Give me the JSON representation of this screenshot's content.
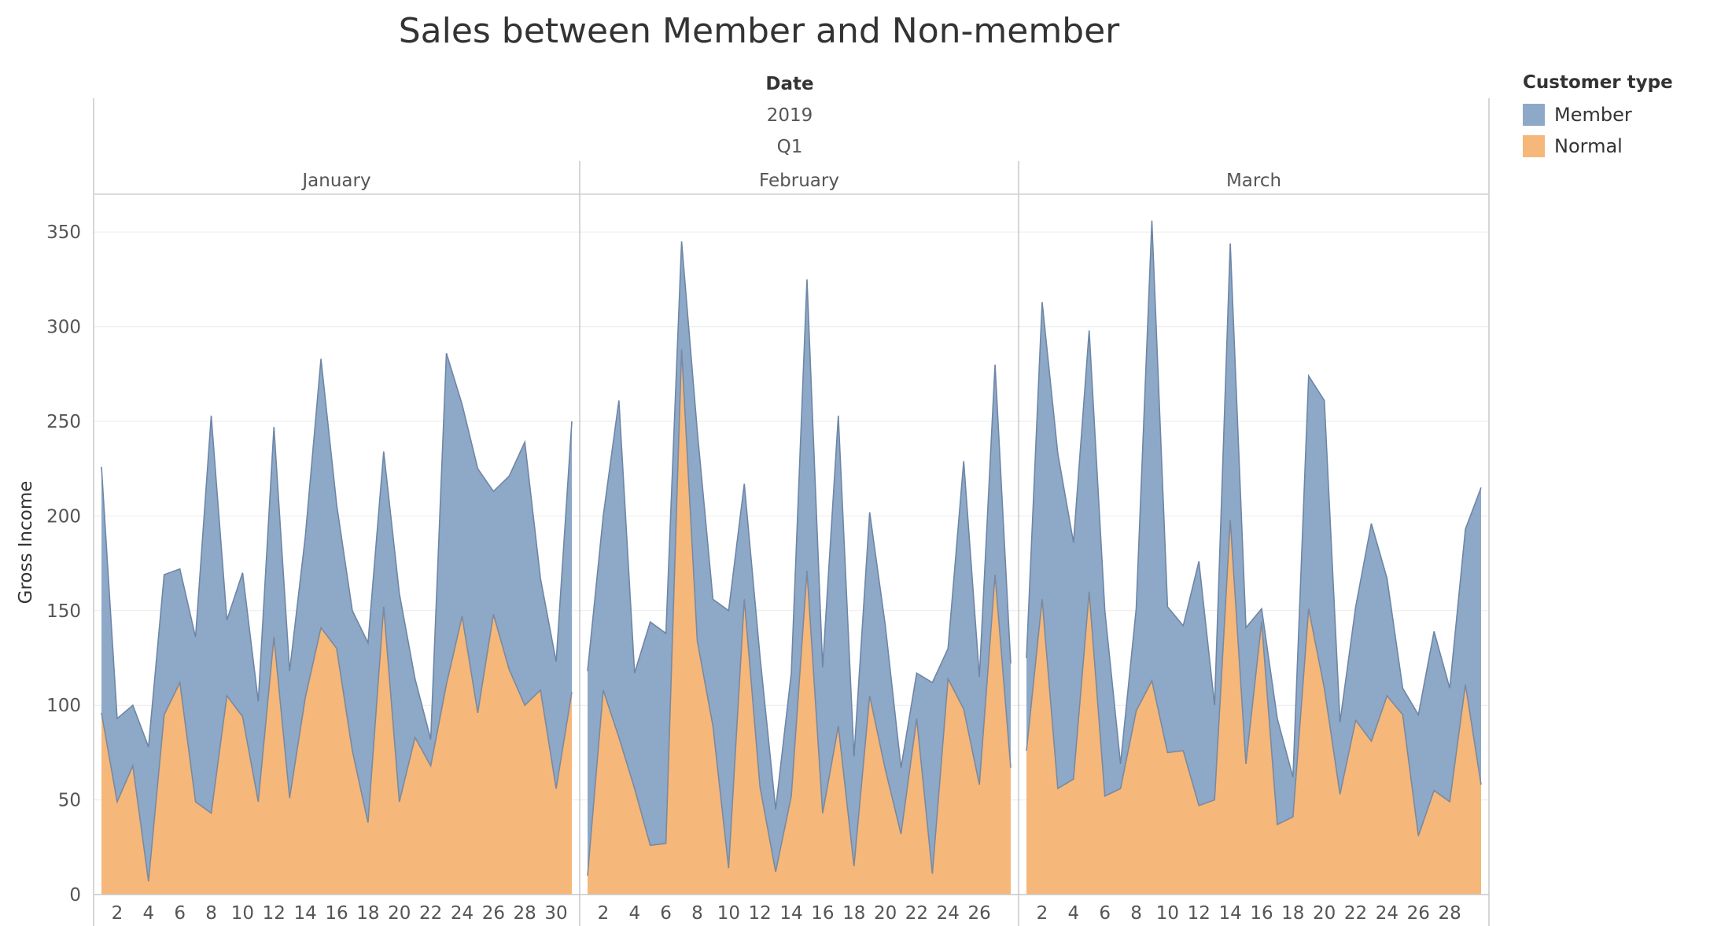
{
  "title": "Sales between Member and Non-member",
  "header": {
    "field": "Date",
    "year": "2019",
    "quarter": "Q1"
  },
  "legend": {
    "title": "Customer type",
    "items": [
      {
        "label": "Member",
        "color": "#8ea8c8"
      },
      {
        "label": "Normal",
        "color": "#f5b77a"
      }
    ]
  },
  "chart_data": {
    "type": "area",
    "stacked": true,
    "ylabel": "Gross Income",
    "ylim": [
      0,
      370
    ],
    "yticks": [
      0,
      50,
      100,
      150,
      200,
      250,
      300,
      350
    ],
    "grid": true,
    "legend_position": "right",
    "panels": [
      {
        "month": "January",
        "days": [
          1,
          2,
          3,
          4,
          5,
          6,
          7,
          8,
          9,
          10,
          11,
          12,
          13,
          14,
          15,
          16,
          17,
          18,
          19,
          20,
          21,
          22,
          23,
          24,
          25,
          26,
          27,
          28,
          29,
          30,
          31
        ],
        "xticks": [
          2,
          4,
          6,
          8,
          10,
          12,
          14,
          16,
          18,
          20,
          22,
          24,
          26,
          28,
          30
        ],
        "series": [
          {
            "name": "Normal",
            "values": [
              96,
              49,
              68,
              7,
              95,
              112,
              49,
              43,
              105,
              94,
              49,
              136,
              51,
              104,
              141,
              130,
              76,
              38,
              152,
              49,
              83,
              68,
              111,
              147,
              96,
              148,
              119,
              100,
              108,
              56,
              107
            ]
          },
          {
            "name": "Member",
            "values": [
              130,
              44,
              32,
              71,
              74,
              60,
              87,
              210,
              40,
              76,
              53,
              111,
              67,
              85,
              142,
              76,
              74,
              95,
              82,
              110,
              31,
              14,
              175,
              112,
              129,
              65,
              102,
              139,
              59,
              67,
              143
            ]
          }
        ]
      },
      {
        "month": "February",
        "days": [
          1,
          2,
          3,
          4,
          5,
          6,
          7,
          8,
          9,
          10,
          11,
          12,
          13,
          14,
          15,
          16,
          17,
          18,
          19,
          20,
          21,
          22,
          23,
          24,
          25,
          26,
          27,
          28
        ],
        "xticks": [
          2,
          4,
          6,
          8,
          10,
          12,
          14,
          16,
          18,
          20,
          22,
          24,
          26
        ],
        "series": [
          {
            "name": "Normal",
            "values": [
              10,
              108,
              83,
              56,
              26,
              27,
              288,
              134,
              89,
              14,
              156,
              57,
              12,
              52,
              171,
              43,
              89,
              15,
              105,
              66,
              32,
              93,
              11,
              114,
              98,
              58,
              169,
              67
            ]
          },
          {
            "name": "Member",
            "values": [
              108,
              92,
              178,
              61,
              118,
              111,
              57,
              111,
              67,
              136,
              61,
              69,
              33,
              65,
              154,
              77,
              164,
              58,
              97,
              76,
              35,
              24,
              101,
              16,
              131,
              57,
              111,
              55
            ]
          }
        ]
      },
      {
        "month": "March",
        "days": [
          1,
          2,
          3,
          4,
          5,
          6,
          7,
          8,
          9,
          10,
          11,
          12,
          13,
          14,
          15,
          16,
          17,
          18,
          19,
          20,
          21,
          22,
          23,
          24,
          25,
          26,
          27,
          28,
          29,
          30
        ],
        "xticks": [
          2,
          4,
          6,
          8,
          10,
          12,
          14,
          16,
          18,
          20,
          22,
          24,
          26,
          28
        ],
        "series": [
          {
            "name": "Normal",
            "values": [
              76,
              156,
              56,
              61,
              160,
              52,
              56,
              97,
              113,
              75,
              76,
              47,
              50,
              198,
              69,
              144,
              37,
              41,
              151,
              109,
              53,
              92,
              81,
              105,
              95,
              31,
              55,
              49,
              111,
              58
            ]
          },
          {
            "name": "Member",
            "values": [
              49,
              157,
              177,
              125,
              138,
              98,
              13,
              54,
              243,
              77,
              66,
              129,
              50,
              146,
              72,
              7,
              56,
              21,
              123,
              152,
              38,
              60,
              115,
              62,
              14,
              64,
              84,
              60,
              82,
              157
            ]
          }
        ]
      }
    ]
  }
}
